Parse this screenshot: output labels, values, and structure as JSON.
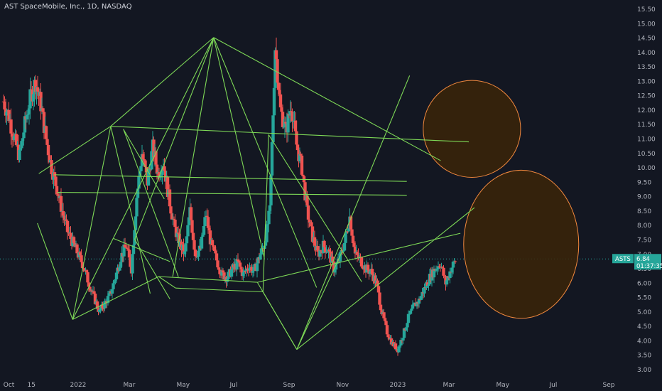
{
  "header": {
    "title": "AST SpaceMobile, Inc., 1D, NASDAQ"
  },
  "price_badge": {
    "symbol": "ASTS",
    "price": "6.84",
    "countdown": "01:37:35"
  },
  "colors": {
    "background": "#131722",
    "up": "#26a69a",
    "down": "#ef5350",
    "trendline": "#7ed957",
    "circle_fill": "#3b2508",
    "circle_stroke": "#f0883e",
    "badge": "#26a69a"
  },
  "chart_data": {
    "type": "candlestick",
    "title": "AST SpaceMobile, Inc., 1D, NASDAQ",
    "symbol": "ASTS",
    "last_price": 6.84,
    "y_ticks": [
      "15.50",
      "15.00",
      "14.50",
      "14.00",
      "13.50",
      "13.00",
      "12.50",
      "12.00",
      "11.50",
      "11.00",
      "10.50",
      "10.00",
      "9.50",
      "9.00",
      "8.50",
      "8.00",
      "7.50",
      "7.00",
      "6.50",
      "6.00",
      "5.50",
      "5.00",
      "4.50",
      "4.00",
      "3.50",
      "3.00"
    ],
    "x_ticks": [
      {
        "label": "Oct",
        "t": 0.1
      },
      {
        "label": "15",
        "t": 1.0
      },
      {
        "label": "2022",
        "t": 2.6
      },
      {
        "label": "Mar",
        "t": 4.6
      },
      {
        "label": "May",
        "t": 6.6
      },
      {
        "label": "Jul",
        "t": 8.6
      },
      {
        "label": "Sep",
        "t": 10.6
      },
      {
        "label": "Nov",
        "t": 12.6
      },
      {
        "label": "2023",
        "t": 14.6
      },
      {
        "label": "Mar",
        "t": 16.6
      },
      {
        "label": "May",
        "t": 18.6
      },
      {
        "label": "Jul",
        "t": 20.6
      },
      {
        "label": "Sep",
        "t": 22.6
      }
    ],
    "y_range": [
      3.0,
      15.6
    ],
    "x_range": [
      0,
      23.6
    ],
    "price_path": [
      [
        0.0,
        12.3
      ],
      [
        0.2,
        11.8
      ],
      [
        0.4,
        11.0
      ],
      [
        0.6,
        10.4
      ],
      [
        0.8,
        11.5
      ],
      [
        1.0,
        12.4
      ],
      [
        1.2,
        13.0
      ],
      [
        1.4,
        12.2
      ],
      [
        1.6,
        11.0
      ],
      [
        1.8,
        10.0
      ],
      [
        2.0,
        9.3
      ],
      [
        2.2,
        8.5
      ],
      [
        2.4,
        7.8
      ],
      [
        2.6,
        7.4
      ],
      [
        2.8,
        7.0
      ],
      [
        3.0,
        6.6
      ],
      [
        3.2,
        6.0
      ],
      [
        3.4,
        5.5
      ],
      [
        3.6,
        5.0
      ],
      [
        3.8,
        5.3
      ],
      [
        4.0,
        5.6
      ],
      [
        4.2,
        6.2
      ],
      [
        4.4,
        6.9
      ],
      [
        4.6,
        7.3
      ],
      [
        4.8,
        6.5
      ],
      [
        5.0,
        9.0
      ],
      [
        5.2,
        10.5
      ],
      [
        5.4,
        9.5
      ],
      [
        5.6,
        10.7
      ],
      [
        5.8,
        9.8
      ],
      [
        6.0,
        10.2
      ],
      [
        6.2,
        9.0
      ],
      [
        6.4,
        8.0
      ],
      [
        6.6,
        7.4
      ],
      [
        6.8,
        7.0
      ],
      [
        7.0,
        8.5
      ],
      [
        7.2,
        7.0
      ],
      [
        7.4,
        7.2
      ],
      [
        7.6,
        8.4
      ],
      [
        7.8,
        7.3
      ],
      [
        8.0,
        6.8
      ],
      [
        8.2,
        6.3
      ],
      [
        8.4,
        6.2
      ],
      [
        8.6,
        6.5
      ],
      [
        8.8,
        6.7
      ],
      [
        9.0,
        6.3
      ],
      [
        9.2,
        6.6
      ],
      [
        9.4,
        6.4
      ],
      [
        9.6,
        6.9
      ],
      [
        9.8,
        7.4
      ],
      [
        10.0,
        8.5
      ],
      [
        10.2,
        14.2
      ],
      [
        10.4,
        12.0
      ],
      [
        10.6,
        11.3
      ],
      [
        10.8,
        12.2
      ],
      [
        11.0,
        10.8
      ],
      [
        11.2,
        10.0
      ],
      [
        11.4,
        8.5
      ],
      [
        11.6,
        7.6
      ],
      [
        11.8,
        7.0
      ],
      [
        12.0,
        7.3
      ],
      [
        12.2,
        7.1
      ],
      [
        12.4,
        6.5
      ],
      [
        12.6,
        6.8
      ],
      [
        12.8,
        7.4
      ],
      [
        13.0,
        8.3
      ],
      [
        13.2,
        7.0
      ],
      [
        13.4,
        6.8
      ],
      [
        13.6,
        6.5
      ],
      [
        13.8,
        6.4
      ],
      [
        14.0,
        6.0
      ],
      [
        14.2,
        5.0
      ],
      [
        14.4,
        4.3
      ],
      [
        14.6,
        3.9
      ],
      [
        14.8,
        3.7
      ],
      [
        15.0,
        4.2
      ],
      [
        15.2,
        4.8
      ],
      [
        15.4,
        5.2
      ],
      [
        15.6,
        5.4
      ],
      [
        15.8,
        5.8
      ],
      [
        16.0,
        6.2
      ],
      [
        16.2,
        6.5
      ],
      [
        16.4,
        6.7
      ],
      [
        16.6,
        6.0
      ],
      [
        16.8,
        6.5
      ],
      [
        17.0,
        6.84
      ]
    ],
    "trend_lines": [
      [
        [
          1.2,
          8.08
        ],
        [
          2.45,
          4.74
        ]
      ],
      [
        [
          2.45,
          4.74
        ],
        [
          3.8,
          11.44
        ]
      ],
      [
        [
          1.25,
          9.8
        ],
        [
          3.8,
          11.44
        ]
      ],
      [
        [
          3.8,
          11.44
        ],
        [
          7.45,
          14.52
        ]
      ],
      [
        [
          2.45,
          4.74
        ],
        [
          7.45,
          14.52
        ]
      ],
      [
        [
          4.65,
          7.52
        ],
        [
          7.45,
          14.52
        ]
      ],
      [
        [
          6.0,
          6.23
        ],
        [
          7.45,
          14.52
        ]
      ],
      [
        [
          9.25,
          6.86
        ],
        [
          7.45,
          14.52
        ]
      ],
      [
        [
          7.45,
          14.52
        ],
        [
          15.5,
          10.25
        ]
      ],
      [
        [
          7.45,
          14.52
        ],
        [
          11.1,
          5.85
        ]
      ],
      [
        [
          1.8,
          9.76
        ],
        [
          14.3,
          9.53
        ]
      ],
      [
        [
          1.9,
          9.15
        ],
        [
          14.3,
          9.05
        ]
      ],
      [
        [
          3.8,
          11.44
        ],
        [
          16.5,
          10.9
        ]
      ],
      [
        [
          3.8,
          11.44
        ],
        [
          5.2,
          5.64
        ]
      ],
      [
        [
          4.25,
          11.34
        ],
        [
          6.2,
          6.22
        ]
      ],
      [
        [
          4.25,
          11.34
        ],
        [
          5.7,
          8.92
        ]
      ],
      [
        [
          3.9,
          7.55
        ],
        [
          5.9,
          6.75
        ]
      ],
      [
        [
          2.45,
          4.74
        ],
        [
          5.5,
          6.23
        ]
      ],
      [
        [
          5.5,
          6.23
        ],
        [
          6.1,
          5.83
        ]
      ],
      [
        [
          6.1,
          5.83
        ],
        [
          9.2,
          5.7
        ]
      ],
      [
        [
          9.2,
          5.7
        ],
        [
          10.4,
          3.7
        ]
      ],
      [
        [
          9.4,
          11.15
        ],
        [
          9.2,
          5.7
        ]
      ],
      [
        [
          9.4,
          11.15
        ],
        [
          12.7,
          6.05
        ]
      ],
      [
        [
          9.0,
          6.03
        ],
        [
          10.4,
          3.7
        ]
      ],
      [
        [
          10.4,
          3.7
        ],
        [
          12.0,
          7.08
        ]
      ],
      [
        [
          10.4,
          3.7
        ],
        [
          14.4,
          13.2
        ]
      ],
      [
        [
          10.4,
          3.7
        ],
        [
          16.7,
          8.62
        ]
      ],
      [
        [
          9.0,
          6.03
        ],
        [
          16.2,
          7.73
        ]
      ],
      [
        [
          5.5,
          6.23
        ],
        [
          9.0,
          6.03
        ]
      ],
      [
        [
          4.65,
          7.52
        ],
        [
          5.9,
          5.45
        ]
      ]
    ],
    "circles": [
      {
        "cx": 13.85,
        "cy": 11.35,
        "r_x": 1.27,
        "r_y": 1.68
      },
      {
        "cx": 15.7,
        "cy": 7.35,
        "r_x": 1.5,
        "r_y": 2.57
      }
    ]
  }
}
